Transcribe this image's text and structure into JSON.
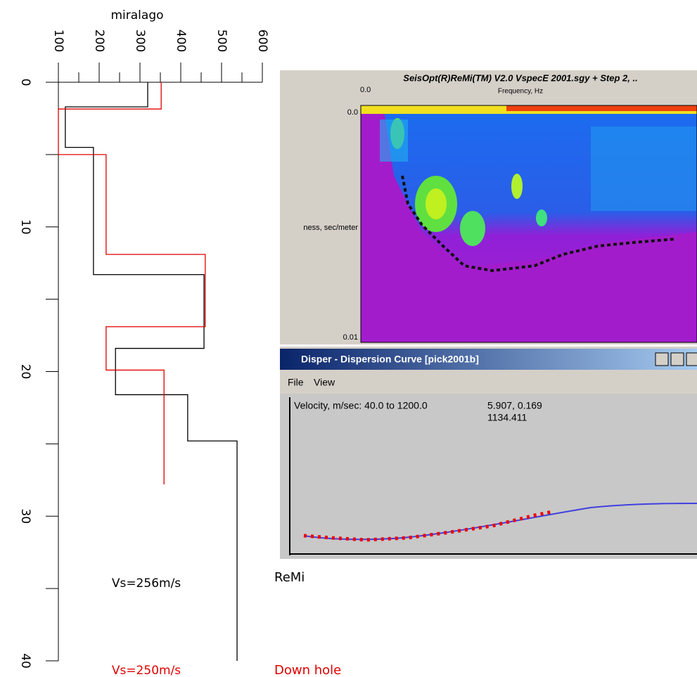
{
  "chart_data": {
    "type": "step-profile",
    "title": "miralago",
    "xlim": [
      100,
      600
    ],
    "xticks": [
      100,
      200,
      300,
      400,
      500,
      600
    ],
    "xminor": [
      150,
      250,
      350,
      450,
      550
    ],
    "ylim": [
      0,
      40
    ],
    "yticks": [
      0,
      10,
      20,
      30,
      40
    ],
    "yminor": [
      5,
      15,
      25,
      35
    ],
    "y_inverted": true,
    "series": [
      {
        "name": "ReMi",
        "color": "#000000",
        "x": [
          319,
          319,
          117,
          117,
          186,
          186,
          457,
          457,
          240,
          240,
          417,
          417,
          538,
          538
        ],
        "y": [
          0,
          1.7,
          1.7,
          4.5,
          4.5,
          13.3,
          13.3,
          18.4,
          18.4,
          21.6,
          21.6,
          24.8,
          24.8,
          40
        ]
      },
      {
        "name": "Down hole",
        "color": "#e00000",
        "x": [
          352,
          352,
          100,
          100,
          217,
          217,
          460,
          460,
          217,
          217,
          359,
          359
        ],
        "y": [
          0,
          1.85,
          1.85,
          5.0,
          5.0,
          11.9,
          11.9,
          16.9,
          16.9,
          19.9,
          19.9,
          27.8
        ]
      }
    ],
    "annotations": [
      {
        "text": "Vs=256m/s",
        "color": "#000000"
      },
      {
        "text": "Vs=250m/s",
        "color": "#e00000"
      }
    ]
  },
  "screenshot": {
    "spectrum_window": {
      "title": "SeisOpt(R)ReMi(TM) V2.0 VspecE 2001.sgy + Step 2, ..",
      "x_start": "0.0",
      "x_label": "Frequency, Hz",
      "y_top": "0.0",
      "y_label": "ness, sec/meter",
      "y_bottom": "0.01"
    },
    "dispersion_window": {
      "title": "Disper  -  Dispersion Curve [pick2001b]",
      "menu": [
        "File",
        "View"
      ],
      "range_label": "Velocity, m/sec: 40.0 to 1200.0",
      "cursor_xy": "5.907, 0.169",
      "cursor_v": "1134.411"
    }
  }
}
